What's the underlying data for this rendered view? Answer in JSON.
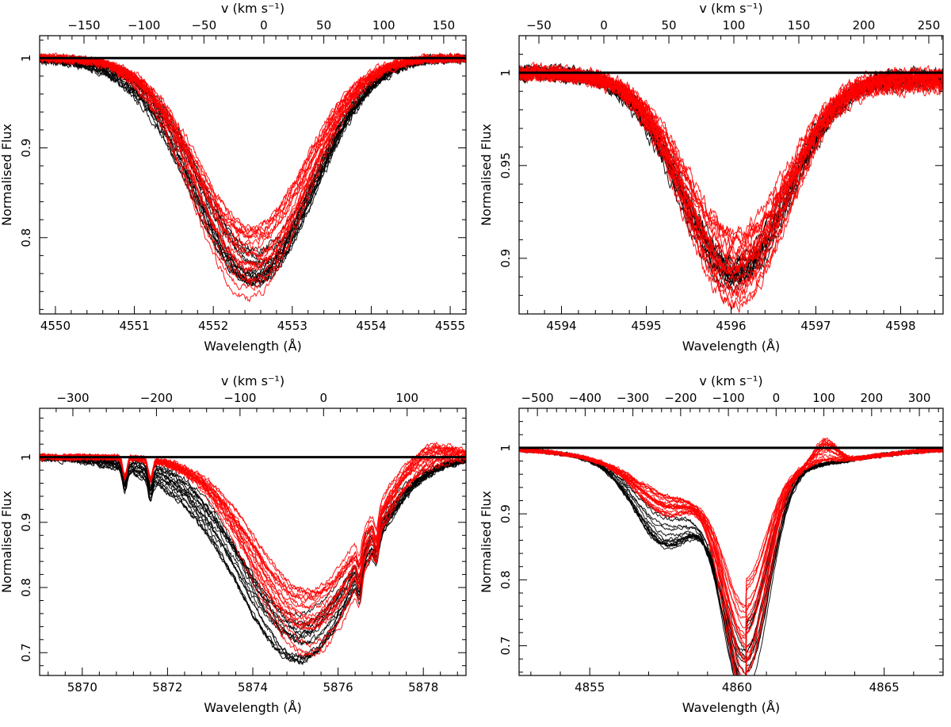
{
  "figure": {
    "description_colors": {
      "black_series": "#000000",
      "red_series": "#ff0000",
      "continuum": "#000000"
    }
  },
  "chart_data": [
    {
      "type": "line",
      "panel": "top-left",
      "xlabel": "Wavelength (Å)",
      "ylabel": "Normalised Flux",
      "top_axis_label": "v (km s⁻¹)",
      "xlim": [
        4549.8,
        4555.2
      ],
      "ylim": [
        0.715,
        1.025
      ],
      "x_ticks": [
        4550,
        4551,
        4552,
        4553,
        4554,
        4555
      ],
      "x_tick_labels": [
        "4550",
        "4551",
        "4552",
        "4553",
        "4554",
        "4555"
      ],
      "y_ticks": [
        0.8,
        0.9,
        1.0
      ],
      "y_tick_labels": [
        "0.8",
        "0.9",
        "1"
      ],
      "top_ticks": [
        -150,
        -100,
        -50,
        0,
        50,
        100,
        150
      ],
      "top_tick_labels": [
        "−150",
        "−100",
        "−50",
        "0",
        "50",
        "100",
        "150"
      ],
      "top_scale": {
        "center_wavelength": 4552.64,
        "km_s_per_angstrom": 65.85
      },
      "continuum": 1.0,
      "series": [
        {
          "name": "black spectra",
          "color": "#000000",
          "count": 16,
          "profile": {
            "center": 4552.55,
            "depth_min": 0.21,
            "depth_max": 0.245,
            "width": 0.72,
            "noise": 0.003,
            "wing_excess": [
              0.0,
              0.035
            ],
            "wing_center": 4552.0
          }
        },
        {
          "name": "red spectra",
          "color": "#ff0000",
          "count": 18,
          "profile": {
            "center": 4552.5,
            "depth_min": 0.185,
            "depth_max": 0.27,
            "width": 0.7,
            "noise": 0.003,
            "wing_excess": [
              0.0,
              0.0
            ],
            "wing_center": 4552.0
          }
        }
      ]
    },
    {
      "type": "line",
      "panel": "top-right",
      "xlabel": "Wavelength (Å)",
      "ylabel": "Normalised Flux",
      "top_axis_label": "v (km s⁻¹)",
      "xlim": [
        4593.5,
        4598.5
      ],
      "ylim": [
        0.87,
        1.02
      ],
      "x_ticks": [
        4594,
        4595,
        4596,
        4597,
        4598
      ],
      "x_tick_labels": [
        "4594",
        "4595",
        "4596",
        "4597",
        "4598"
      ],
      "y_ticks": [
        0.9,
        0.95,
        1.0
      ],
      "y_tick_labels": [
        "0.9",
        "0.95",
        "1"
      ],
      "top_ticks": [
        -50,
        0,
        50,
        100,
        150,
        200,
        250
      ],
      "top_tick_labels": [
        "−50",
        "0",
        "50",
        "100",
        "150",
        "200",
        "250"
      ],
      "top_scale": {
        "center_wavelength": 4594.5,
        "km_s_per_angstrom": 65.25
      },
      "continuum": 1.0,
      "series": [
        {
          "name": "black spectra",
          "color": "#000000",
          "count": 14,
          "profile": {
            "center": 4596.05,
            "depth_min": 0.1,
            "depth_max": 0.112,
            "width": 0.62,
            "noise": 0.0025,
            "wing_excess": [
              0.0,
              0.0
            ],
            "wing_center": 4595.5,
            "slope": 0.006
          }
        },
        {
          "name": "red spectra",
          "color": "#ff0000",
          "count": 20,
          "profile": {
            "center": 4596.05,
            "depth_min": 0.083,
            "depth_max": 0.125,
            "width": 0.6,
            "noise": 0.0025,
            "wing_excess": [
              0.0,
              0.0
            ],
            "wing_center": 4595.5,
            "slope": 0.01
          }
        }
      ]
    },
    {
      "type": "line",
      "panel": "bottom-left",
      "xlabel": "Wavelength (Å)",
      "ylabel": "Normalised Flux",
      "top_axis_label": "v (km s⁻¹)",
      "xlim": [
        5869.0,
        5879.0
      ],
      "ylim": [
        0.665,
        1.075
      ],
      "x_ticks": [
        5870,
        5872,
        5874,
        5876,
        5878
      ],
      "x_tick_labels": [
        "5870",
        "5872",
        "5874",
        "5876",
        "5878"
      ],
      "y_ticks": [
        0.7,
        0.8,
        0.9,
        1.0
      ],
      "y_tick_labels": [
        "0.7",
        "0.8",
        "0.9",
        "1"
      ],
      "top_ticks": [
        -300,
        -200,
        -100,
        0,
        100
      ],
      "top_tick_labels": [
        "−300",
        "−200",
        "−100",
        "0",
        "100"
      ],
      "top_scale": {
        "center_wavelength": 5875.66,
        "km_s_per_angstrom": 51.02
      },
      "continuum": 1.0,
      "series": [
        {
          "name": "black spectra",
          "color": "#000000",
          "count": 16,
          "profile": {
            "center": 5875.2,
            "depth_min": 0.23,
            "depth_max": 0.3,
            "width": 1.35,
            "noise": 0.003,
            "wing_excess": [
              0.0,
              0.06
            ],
            "wing_center": 5873.5,
            "telluric": [
              5871.0,
              5871.6,
              5876.5,
              5876.9
            ]
          }
        },
        {
          "name": "red spectra",
          "color": "#ff0000",
          "count": 18,
          "profile": {
            "center": 5875.3,
            "depth_min": 0.205,
            "depth_max": 0.31,
            "width": 1.3,
            "noise": 0.003,
            "wing_excess": [
              0.0,
              0.0
            ],
            "wing_center": 5873.5,
            "emission": [
              5877.9,
              0.0,
              0.05
            ],
            "telluric": [
              5871.0,
              5871.6,
              5876.5,
              5876.9
            ]
          }
        }
      ]
    },
    {
      "type": "line",
      "panel": "bottom-right",
      "xlabel": "Wavelength (Å)",
      "ylabel": "Normalised Flux",
      "top_axis_label": "v (km s⁻¹)",
      "xlim": [
        4852.6,
        4867.0
      ],
      "ylim": [
        0.655,
        1.06
      ],
      "x_ticks": [
        4855,
        4860,
        4865
      ],
      "x_tick_labels": [
        "4855",
        "4860",
        "4865"
      ],
      "y_ticks": [
        0.7,
        0.8,
        0.9,
        1.0
      ],
      "y_tick_labels": [
        "0.7",
        "0.8",
        "0.9",
        "1"
      ],
      "top_ticks": [
        -500,
        -400,
        -300,
        -200,
        -100,
        0,
        100,
        200,
        300
      ],
      "top_tick_labels": [
        "−500",
        "−400",
        "−300",
        "−200",
        "−100",
        "0",
        "100",
        "200",
        "300"
      ],
      "top_scale": {
        "center_wavelength": 4861.33,
        "km_s_per_angstrom": 61.67
      },
      "continuum": 1.0,
      "series": [
        {
          "name": "black spectra",
          "color": "#000000",
          "count": 14,
          "profile": {
            "center": 4860.3,
            "depth_min": 0.22,
            "depth_max": 0.335,
            "width": 0.75,
            "noise": 0.002,
            "wing_excess": [
              0.05,
              0.1
            ],
            "wing_center": 4857.5,
            "broad_width": 3.0
          }
        },
        {
          "name": "red spectra",
          "color": "#ff0000",
          "count": 20,
          "profile": {
            "center": 4860.3,
            "depth_min": 0.16,
            "depth_max": 0.31,
            "width": 0.7,
            "noise": 0.002,
            "wing_excess": [
              0.02,
              0.05
            ],
            "wing_center": 4857.5,
            "broad_width": 3.0,
            "emission": [
              4863.0,
              0.0,
              0.04
            ]
          }
        }
      ]
    }
  ]
}
